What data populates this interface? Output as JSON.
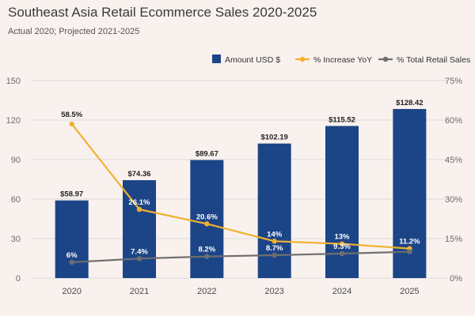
{
  "header": {
    "title": "Southeast Asia Retail Ecommerce Sales 2020-2025",
    "subtitle": "Actual 2020; Projected 2021-2025"
  },
  "colors": {
    "bar": "#1c4587",
    "increase": "#f1b12e",
    "total": "#6f6f6f",
    "grid": "#dcdcdc"
  },
  "chart_data": {
    "type": "bar",
    "title": "Southeast Asia Retail Ecommerce Sales 2020-2025",
    "subtitle": "Actual 2020; Projected 2021-2025",
    "categories": [
      "2020",
      "2021",
      "2022",
      "2023",
      "2024",
      "2025"
    ],
    "series": [
      {
        "name": "Amount USD $",
        "type": "bar",
        "axis": "left",
        "values": [
          58.97,
          74.36,
          89.67,
          102.19,
          115.52,
          128.42
        ],
        "labels": [
          "$58.97",
          "$74.36",
          "$89.67",
          "$102.19",
          "$115.52",
          "$128.42"
        ]
      },
      {
        "name": "% Increase YoY",
        "type": "line",
        "axis": "right",
        "values": [
          58.5,
          26.1,
          20.6,
          14,
          13,
          11.2
        ],
        "labels": [
          "58.5%",
          "26.1%",
          "20.6%",
          "14%",
          "13%",
          "11.2%"
        ]
      },
      {
        "name": "% Total Retail Sales",
        "type": "line",
        "axis": "right",
        "values": [
          6,
          7.4,
          8.2,
          8.7,
          9.3,
          10
        ],
        "labels": [
          "6%",
          "7.4%",
          "8.2%",
          "8.7%",
          "9.3%",
          ""
        ]
      }
    ],
    "y_left": {
      "range": [
        0,
        150
      ],
      "ticks": [
        "0",
        "30",
        "60",
        "90",
        "120",
        "150"
      ]
    },
    "y_right": {
      "range": [
        0,
        75
      ],
      "ticks": [
        "0%",
        "15%",
        "30%",
        "45%",
        "60%",
        "75%"
      ]
    },
    "legend": [
      "Amount USD $",
      "% Increase YoY",
      "% Total Retail Sales"
    ],
    "legend_position": "top-right",
    "grid": true
  }
}
